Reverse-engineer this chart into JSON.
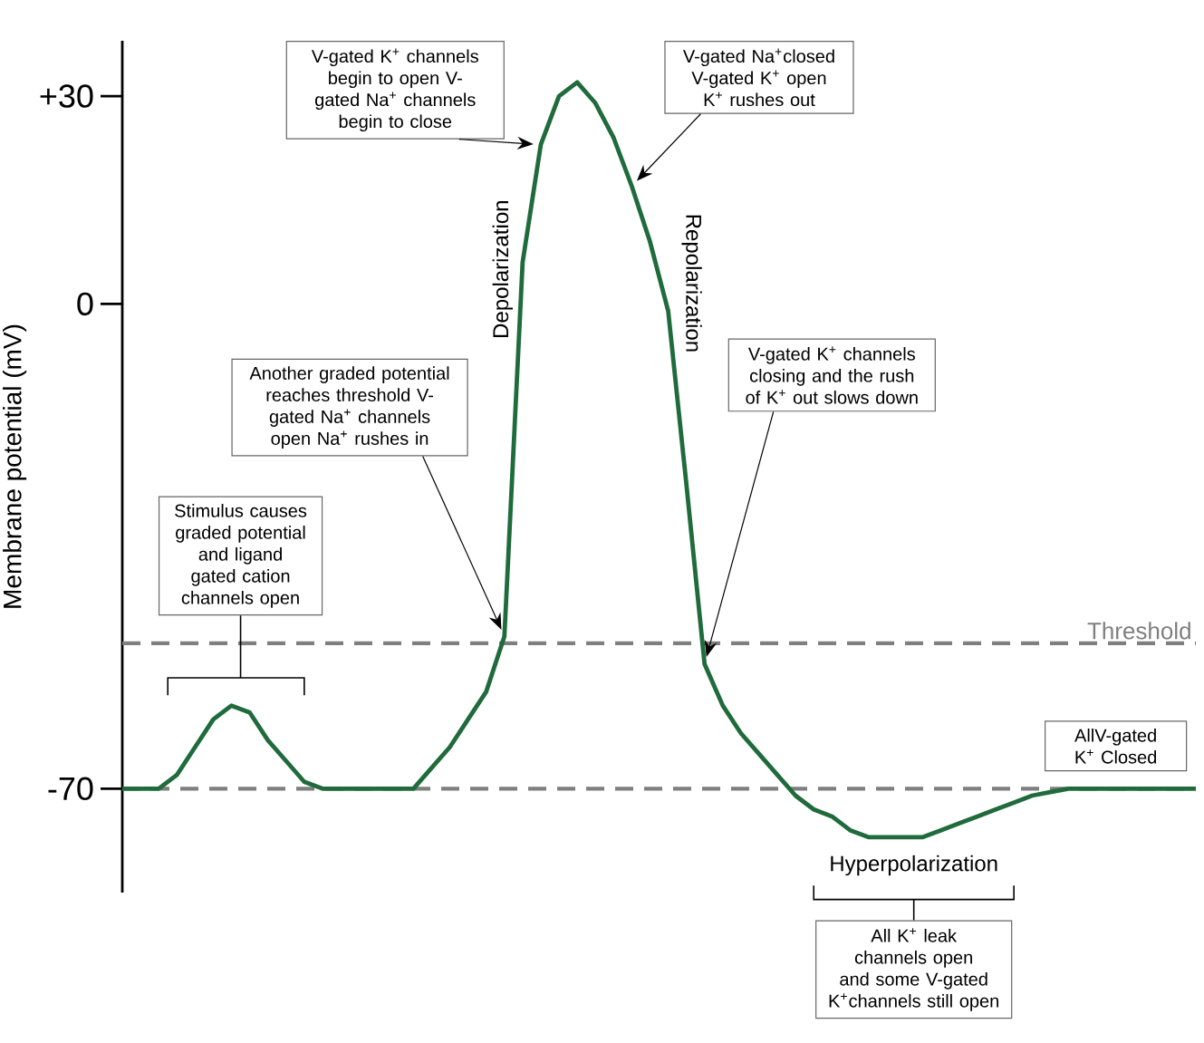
{
  "chart_data": {
    "type": "line",
    "ylabel": "Membrane potential (mV)",
    "categories": [
      null,
      null,
      null,
      null,
      null,
      null,
      null,
      null,
      null,
      null,
      null,
      null,
      null,
      null,
      null,
      null,
      null,
      null,
      null,
      null,
      null,
      null,
      null,
      null,
      null,
      null,
      null,
      null,
      null,
      null,
      null,
      null,
      null,
      null,
      null,
      null,
      null,
      null,
      null,
      null,
      null,
      null,
      null,
      null,
      null,
      null,
      null,
      null,
      null,
      null,
      null,
      null,
      null,
      null,
      null,
      null,
      null,
      null,
      null,
      null
    ],
    "series": [
      {
        "color": "#1f6b3c",
        "values": [
          -70,
          -70,
          -70,
          -68,
          -64,
          -60,
          -58,
          -59,
          -63,
          -66,
          -69,
          -70,
          -70,
          -70,
          -70,
          -70,
          -70,
          -67,
          -64,
          -60,
          -56,
          -48,
          6,
          23,
          30,
          32,
          29,
          24,
          17,
          9,
          -1,
          -26,
          -52,
          -58,
          -62,
          -65,
          -68,
          -71,
          -73,
          -74,
          -76,
          -77,
          -77,
          -77,
          -77,
          -76,
          -75,
          -74,
          -73,
          -72,
          -71,
          -70.5,
          -70,
          -70,
          -70,
          -70,
          -70,
          -70,
          -70,
          -70
        ]
      }
    ],
    "ylim": [
      -85,
      38
    ],
    "yticks": [
      -70,
      0,
      {
        "value": 30,
        "label": "+30"
      }
    ],
    "tick_labels": "y",
    "marker": "none",
    "ref_lines": [
      {
        "axis": "y",
        "value": -49,
        "label": "Threshold",
        "color": "#7f7f7f",
        "line_style": "dashed"
      },
      {
        "axis": "y",
        "value": -70,
        "color": "#7f7f7f",
        "line_style": "dashed"
      }
    ],
    "annotations": [
      "V-gated K$^{+}$ channels begin to open V-gated Na$^{+}$ channels begin to close",
      "V-gated Na$^{+}$closed V-gated K$^{+}$ open K$^{+}$ rushes out",
      "Another graded potential reaches threshold V-gated Na$^{+}$ channels open Na$^{+}$ rushes in",
      "V-gated K$^{+}$ channels closing and the rush of K$^{+}$ out slows down",
      "Stimulus causes graded potential and ligand gated cation channels open",
      "AllV-gated K$^{+}$ Closed",
      "Hyperpolarization",
      "All K$^{+}$ leak channels open and some V-gated K$^{+}$channels still open",
      "Depolarization",
      "Repolarization"
    ]
  }
}
